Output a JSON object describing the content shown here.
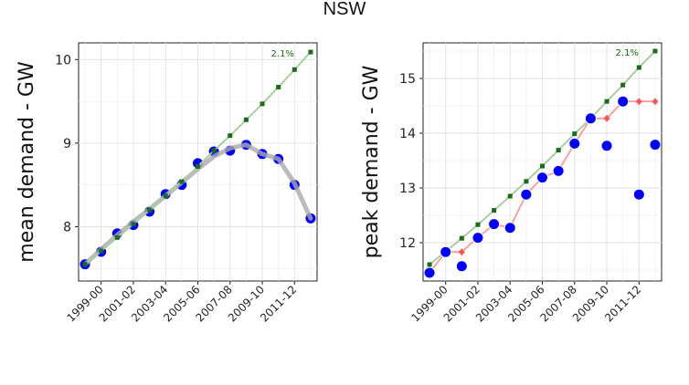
{
  "title": "NSW",
  "chart_data": [
    {
      "type": "line",
      "ylabel": "mean demand - GW",
      "xlabel": "",
      "ylim": [
        7.35,
        10.2
      ],
      "yticks": [
        8,
        9,
        10
      ],
      "x_tick_labels": [
        "1999-00",
        "2001-02",
        "2003-04",
        "2005-06",
        "2007-08",
        "2009-10",
        "2011-12"
      ],
      "x_tick_positions": [
        2000,
        2002,
        2004,
        2006,
        2008,
        2010,
        2012
      ],
      "annotation": "2.1%",
      "grid": true,
      "series": [
        {
          "style": "points",
          "color": "#0000ff",
          "x": [
            1999,
            2000,
            2001,
            2002,
            2003,
            2004,
            2005,
            2006,
            2007,
            2008,
            2009,
            2010,
            2011,
            2012,
            2013
          ],
          "values": [
            7.55,
            7.7,
            7.92,
            8.02,
            8.18,
            8.39,
            8.5,
            8.76,
            8.9,
            8.91,
            8.98,
            8.87,
            8.81,
            8.5,
            8.1
          ]
        },
        {
          "style": "smooth",
          "color": "#aaaaaa",
          "x": [
            1999,
            2000,
            2001,
            2002,
            2003,
            2004,
            2005,
            2006,
            2007,
            2008,
            2009,
            2010,
            2011,
            2012,
            2013
          ],
          "values": [
            7.55,
            7.73,
            7.9,
            8.06,
            8.21,
            8.37,
            8.53,
            8.69,
            8.84,
            8.94,
            8.98,
            8.87,
            8.81,
            8.52,
            8.1
          ]
        },
        {
          "style": "line-squares",
          "color": "#1a6b1a",
          "x": [
            1999,
            2000,
            2001,
            2002,
            2003,
            2004,
            2005,
            2006,
            2007,
            2008,
            2009,
            2010,
            2011,
            2012,
            2013
          ],
          "values": [
            7.55,
            7.71,
            7.87,
            8.03,
            8.2,
            8.37,
            8.54,
            8.72,
            8.91,
            9.09,
            9.28,
            9.47,
            9.67,
            9.88,
            10.09
          ]
        }
      ]
    },
    {
      "type": "line",
      "ylabel": "peak demand - GW",
      "xlabel": "",
      "ylim": [
        11.3,
        15.65
      ],
      "yticks": [
        12,
        13,
        14,
        15
      ],
      "x_tick_labels": [
        "1999-00",
        "2001-02",
        "2003-04",
        "2005-06",
        "2007-08",
        "2009-10",
        "2011-12"
      ],
      "x_tick_positions": [
        2000,
        2002,
        2004,
        2006,
        2008,
        2010,
        2012
      ],
      "annotation": "2.1%",
      "grid": true,
      "series": [
        {
          "style": "line-squares",
          "color": "#1a6b1a",
          "x": [
            1999,
            2000,
            2001,
            2002,
            2003,
            2004,
            2005,
            2006,
            2007,
            2008,
            2009,
            2010,
            2011,
            2012,
            2013
          ],
          "values": [
            11.6,
            11.84,
            12.08,
            12.33,
            12.59,
            12.85,
            13.12,
            13.4,
            13.69,
            13.99,
            14.27,
            14.58,
            14.88,
            15.2,
            15.5
          ]
        },
        {
          "style": "line-diamonds",
          "color": "#ff5555",
          "x": [
            1999,
            2000,
            2001,
            2002,
            2003,
            2004,
            2005,
            2006,
            2007,
            2008,
            2009,
            2010,
            2011,
            2012,
            2013
          ],
          "values": [
            11.45,
            11.83,
            11.83,
            12.1,
            12.33,
            12.28,
            12.88,
            13.19,
            13.31,
            13.81,
            14.27,
            14.27,
            14.58,
            14.58,
            14.58
          ]
        },
        {
          "style": "points",
          "color": "#0000ff",
          "x": [
            1999,
            2000,
            2001,
            2002,
            2003,
            2004,
            2005,
            2006,
            2007,
            2008,
            2009,
            2010,
            2011,
            2012,
            2013
          ],
          "values": [
            11.45,
            11.83,
            11.57,
            12.09,
            12.34,
            12.27,
            12.88,
            13.19,
            13.31,
            13.81,
            14.27,
            13.77,
            14.58,
            12.88,
            13.79
          ]
        }
      ]
    }
  ]
}
